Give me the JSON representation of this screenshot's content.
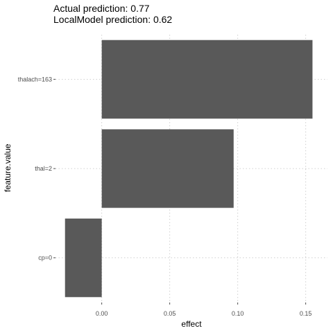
{
  "chart_data": {
    "type": "bar",
    "orientation": "horizontal",
    "title_lines": [
      "Actual prediction: 0.77",
      "LocalModel prediction: 0.62"
    ],
    "xlabel": "effect",
    "ylabel": "feature.value",
    "categories": [
      "thalach=163",
      "thal=2",
      "cp=0"
    ],
    "values": [
      0.155,
      0.097,
      -0.027
    ],
    "xlim": [
      -0.034,
      0.166
    ],
    "xticks": [
      0.0,
      0.05,
      0.1,
      0.15
    ],
    "xtick_labels": [
      "0.00",
      "0.05",
      "0.10",
      "0.15"
    ],
    "grid": "dotted",
    "bar_color": "#595959"
  }
}
